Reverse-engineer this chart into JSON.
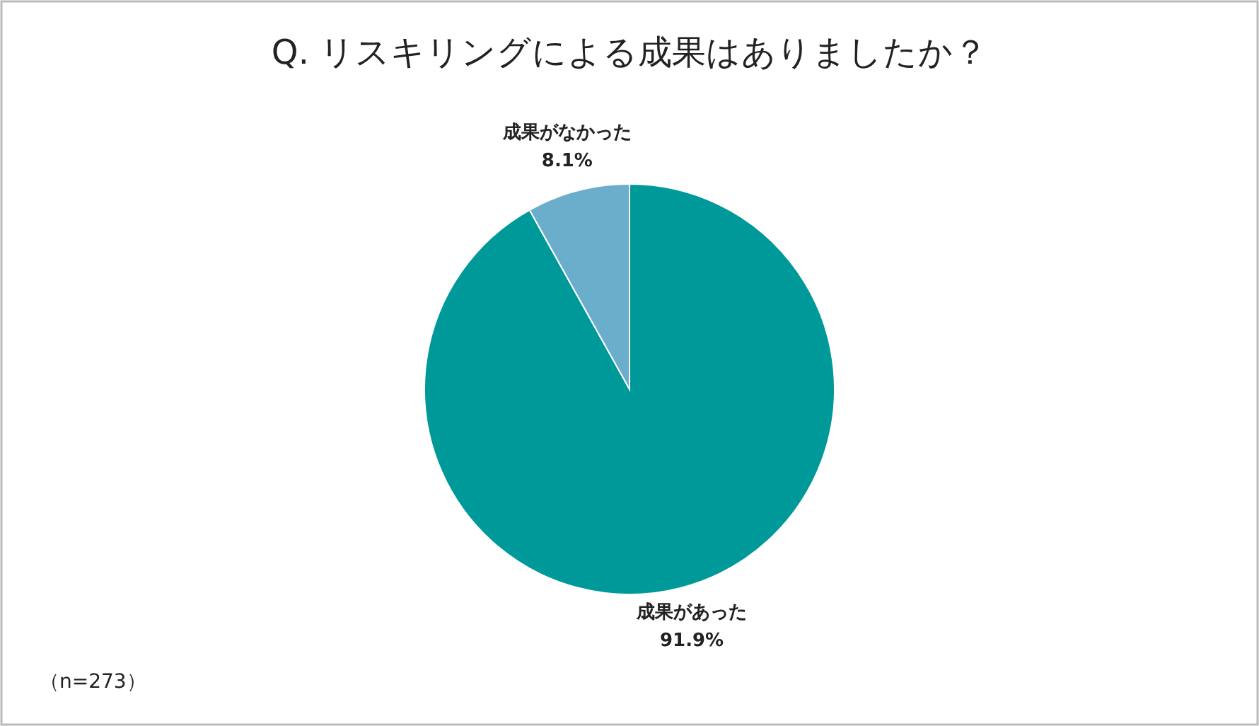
{
  "chart_data": {
    "type": "pie",
    "title": "Q. リスキリングによる成果はありましたか？",
    "categories": [
      "成果があった",
      "成果がなかった"
    ],
    "values": [
      91.9,
      8.1
    ],
    "colors": [
      "#00999a",
      "#6aaecb"
    ],
    "value_labels": [
      "91.9%",
      "8.1%"
    ],
    "legend": false,
    "annotations": [
      "（n=273）"
    ]
  }
}
